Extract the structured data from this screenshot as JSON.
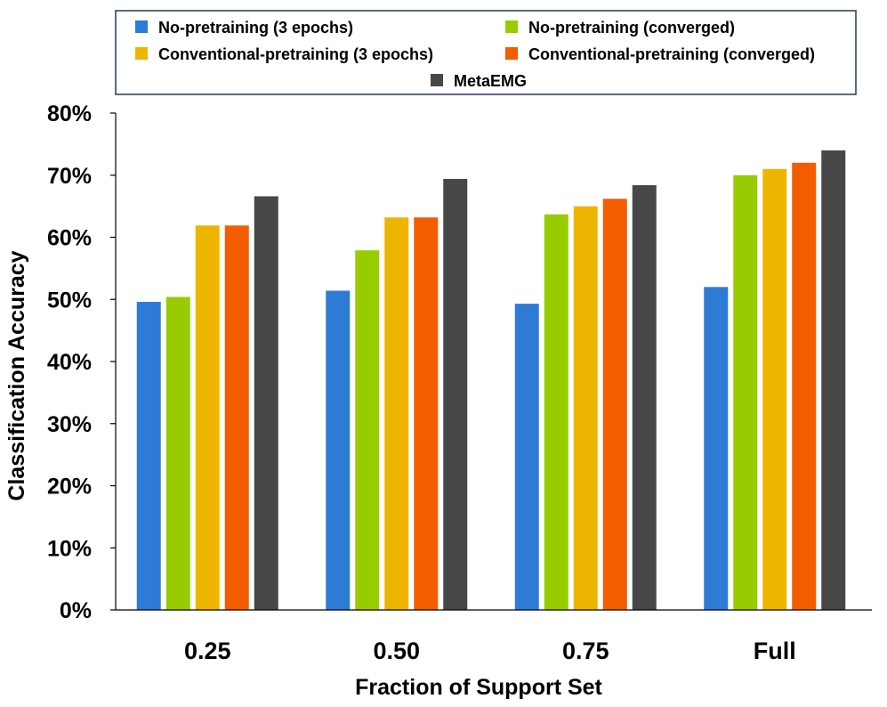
{
  "chart_data": {
    "type": "bar",
    "title": "",
    "xlabel": "Fraction of Support Set",
    "ylabel": "Classification Accuracy",
    "categories": [
      "0.25",
      "0.50",
      "0.75",
      "Full"
    ],
    "ylim": [
      0,
      80
    ],
    "yticks": [
      0,
      10,
      20,
      30,
      40,
      50,
      60,
      70,
      80
    ],
    "ytick_labels": [
      "0%",
      "10%",
      "20%",
      "30%",
      "40%",
      "50%",
      "60%",
      "70%",
      "80%"
    ],
    "grid": false,
    "legend_position": "top",
    "series": [
      {
        "name": "No-pretraining (3 epochs)",
        "color": "#2E7BD6",
        "values": [
          49.6,
          51.4,
          49.3,
          52.0
        ]
      },
      {
        "name": "No-pretraining (converged)",
        "color": "#99CC00",
        "values": [
          50.4,
          57.9,
          63.7,
          70.0
        ]
      },
      {
        "name": "Conventional-pretraining (3 epochs)",
        "color": "#EEB500",
        "values": [
          61.9,
          63.2,
          65.0,
          71.0
        ]
      },
      {
        "name": "Conventional-pretraining (converged)",
        "color": "#F45C00",
        "values": [
          61.9,
          63.2,
          66.2,
          72.0
        ]
      },
      {
        "name": "MetaEMG",
        "color": "#474747",
        "values": [
          66.6,
          69.4,
          68.4,
          74.0
        ]
      }
    ]
  }
}
